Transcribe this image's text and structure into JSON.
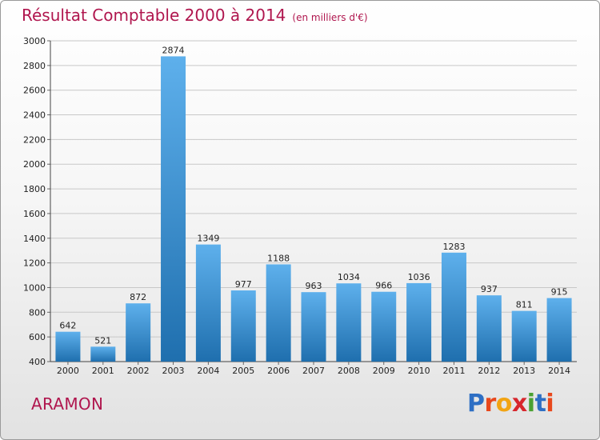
{
  "header": {
    "title": "Résultat Comptable 2000 à 2014",
    "subtitle": "(en milliers d'€)"
  },
  "footer": {
    "commune": "ARAMON",
    "logo": "Proxiti",
    "logo_letters": [
      {
        "ch": "P",
        "color": "#2e6fc4"
      },
      {
        "ch": "r",
        "color": "#e8481c"
      },
      {
        "ch": "o",
        "color": "#f2a413"
      },
      {
        "ch": "x",
        "color": "#d7262c"
      },
      {
        "ch": "i",
        "color": "#4aa132"
      },
      {
        "ch": "t",
        "color": "#2e6fc4"
      },
      {
        "ch": "i",
        "color": "#e8481c"
      }
    ]
  },
  "colors": {
    "bar_light": "#5eb0ec",
    "bar_dark": "#1f6fae",
    "grid": "#c8c8c8",
    "title": "#b0164e"
  },
  "chart_data": {
    "type": "bar",
    "title": "Résultat Comptable 2000 à 2014",
    "subtitle": "(en milliers d'€)",
    "categories": [
      "2000",
      "2001",
      "2002",
      "2003",
      "2004",
      "2005",
      "2006",
      "2007",
      "2008",
      "2009",
      "2010",
      "2011",
      "2012",
      "2013",
      "2014"
    ],
    "values": [
      642,
      521,
      872,
      2874,
      1349,
      977,
      1188,
      963,
      1034,
      966,
      1036,
      1283,
      937,
      811,
      915
    ],
    "ylim": [
      400,
      3000
    ],
    "yticks": [
      400,
      600,
      800,
      1000,
      1200,
      1400,
      1600,
      1800,
      2000,
      2200,
      2400,
      2600,
      2800,
      3000
    ],
    "grid": true,
    "data_labels": true
  }
}
